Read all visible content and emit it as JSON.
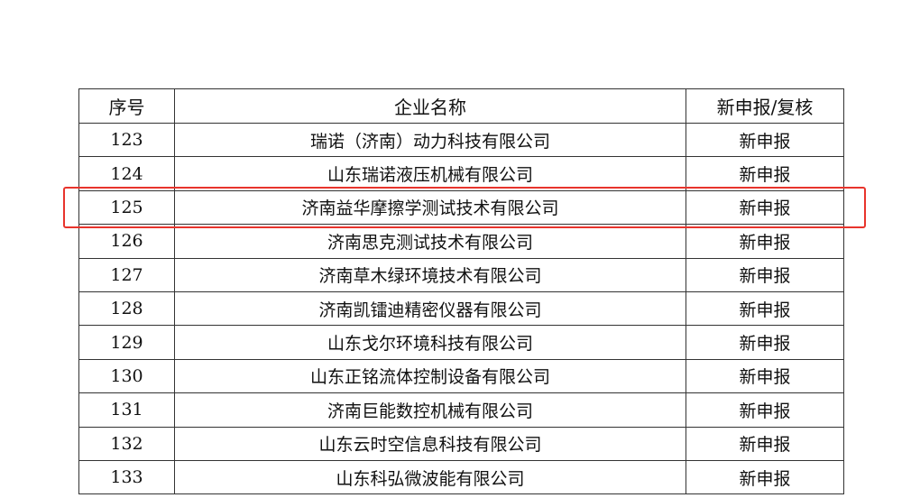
{
  "table": {
    "headers": [
      "序号",
      "企业名称",
      "新申报/复核"
    ],
    "rows": [
      {
        "no": "123",
        "name": "瑞诺（济南）动力科技有限公司",
        "status": "新申报"
      },
      {
        "no": "124",
        "name": "山东瑞诺液压机械有限公司",
        "status": "新申报"
      },
      {
        "no": "125",
        "name": "济南益华摩擦学测试技术有限公司",
        "status": "新申报"
      },
      {
        "no": "126",
        "name": "济南思克测试技术有限公司",
        "status": "新申报"
      },
      {
        "no": "127",
        "name": "济南草木绿环境技术有限公司",
        "status": "新申报"
      },
      {
        "no": "128",
        "name": "济南凯镭迪精密仪器有限公司",
        "status": "新申报"
      },
      {
        "no": "129",
        "name": "山东戈尔环境科技有限公司",
        "status": "新申报"
      },
      {
        "no": "130",
        "name": "山东正铭流体控制设备有限公司",
        "status": "新申报"
      },
      {
        "no": "131",
        "name": "济南巨能数控机械有限公司",
        "status": "新申报"
      },
      {
        "no": "132",
        "name": "山东云时空信息科技有限公司",
        "status": "新申报"
      },
      {
        "no": "133",
        "name": "山东科弘微波能有限公司",
        "status": "新申报"
      }
    ],
    "highlighted_row": "125",
    "highlight_color": "#e8342c"
  }
}
